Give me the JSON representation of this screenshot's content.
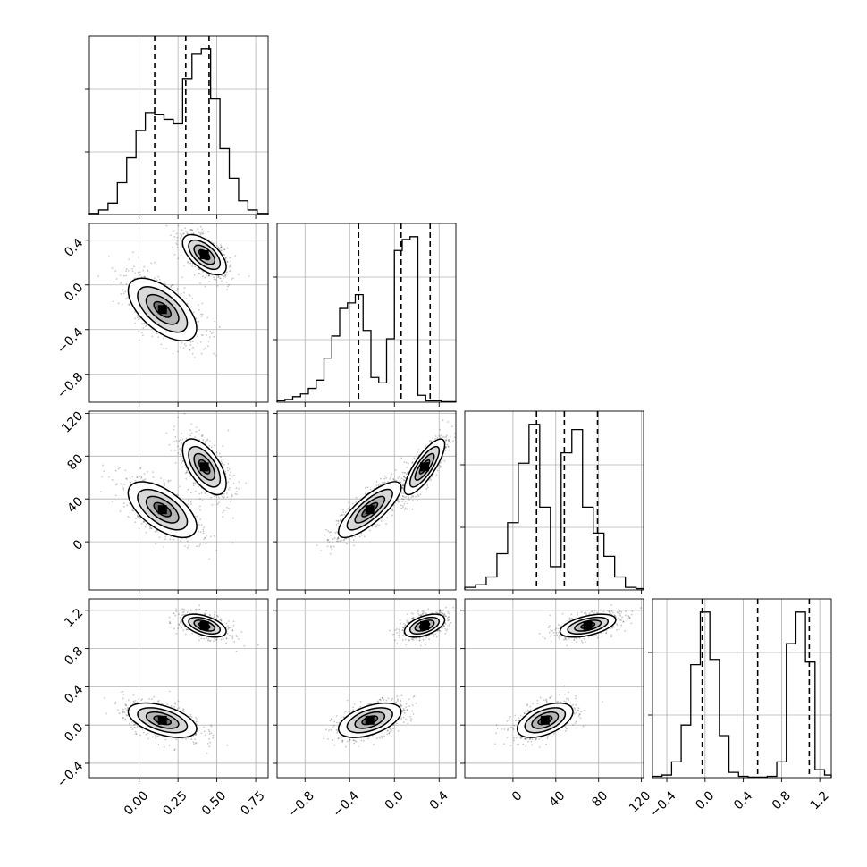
{
  "chart_data": {
    "type": "corner",
    "grid_visible": true,
    "dimensions": [
      {
        "name": "",
        "range": [
          -0.32,
          0.83
        ],
        "ticks": [
          0.0,
          0.25,
          0.5,
          0.75
        ],
        "tick_labels": [
          "0.00",
          "0.25",
          "0.50",
          "0.75"
        ],
        "quantiles": [
          0.1,
          0.3,
          0.45
        ],
        "hist_edges": [
          -0.32,
          -0.26,
          -0.2,
          -0.14,
          -0.08,
          -0.02,
          0.04,
          0.1,
          0.16,
          0.22,
          0.28,
          0.34,
          0.4,
          0.46,
          0.52,
          0.58,
          0.64,
          0.7,
          0.76,
          0.83
        ],
        "hist_counts": [
          0.5,
          2,
          5,
          14,
          25,
          37,
          45,
          44,
          42,
          40,
          60,
          71,
          73,
          51,
          29,
          16,
          6,
          2,
          0.5
        ]
      },
      {
        "name": "",
        "range": [
          -1.05,
          0.55
        ],
        "ticks": [
          -0.8,
          -0.4,
          0.0,
          0.4
        ],
        "tick_labels": [
          "−0.8",
          "−0.4",
          "0.0",
          "0.4"
        ],
        "quantiles": [
          -0.32,
          0.06,
          0.32
        ],
        "hist_edges": [
          -1.05,
          -0.98,
          -0.91,
          -0.84,
          -0.77,
          -0.7,
          -0.63,
          -0.56,
          -0.49,
          -0.42,
          -0.35,
          -0.28,
          -0.21,
          -0.14,
          -0.07,
          0.0,
          0.07,
          0.14,
          0.21,
          0.28,
          0.35,
          0.42,
          0.49,
          0.55
        ],
        "hist_counts": [
          0.5,
          1,
          2,
          3,
          5,
          8,
          16,
          24,
          34,
          36,
          39,
          26,
          9,
          7,
          23,
          55,
          59,
          60,
          2.5,
          0.5,
          0.5,
          0.2,
          0.2
        ]
      },
      {
        "name": "",
        "range": [
          -45,
          122
        ],
        "ticks": [
          0,
          40,
          80,
          120
        ],
        "tick_labels": [
          "0",
          "40",
          "80",
          "120"
        ],
        "quantiles": [
          22,
          48,
          79
        ],
        "hist_edges": [
          -45,
          -35,
          -25,
          -15,
          -5,
          5,
          15,
          25,
          35,
          45,
          55,
          65,
          75,
          85,
          95,
          105,
          115,
          122
        ],
        "hist_counts": [
          1,
          2,
          5,
          14,
          26,
          49,
          64,
          32,
          9,
          53,
          62,
          32,
          22,
          13,
          5,
          1,
          0.5
        ]
      },
      {
        "name": "",
        "range": [
          -0.55,
          1.32
        ],
        "ticks": [
          -0.4,
          0.0,
          0.4,
          0.8,
          1.2
        ],
        "tick_labels": [
          "−0.4",
          "0.0",
          "0.4",
          "0.8",
          "1.2"
        ],
        "quantiles": [
          -0.03,
          0.55,
          1.09
        ],
        "hist_edges": [
          -0.55,
          -0.45,
          -0.35,
          -0.25,
          -0.15,
          -0.05,
          0.05,
          0.15,
          0.25,
          0.35,
          0.45,
          0.55,
          0.65,
          0.75,
          0.85,
          0.95,
          1.05,
          1.15,
          1.25,
          1.32
        ],
        "hist_counts": [
          0.5,
          1,
          6,
          20,
          43,
          63,
          45,
          16,
          2,
          0.5,
          0.2,
          0.2,
          0.5,
          6,
          51,
          63,
          44,
          3,
          1
        ]
      }
    ],
    "modes": [
      {
        "weight": 0.5,
        "mean": [
          0.15,
          -0.22,
          30,
          0.05
        ],
        "sd": [
          0.11,
          0.14,
          13,
          0.09
        ]
      },
      {
        "weight": 0.5,
        "mean": [
          0.42,
          0.27,
          70,
          1.04
        ],
        "sd": [
          0.07,
          0.09,
          13,
          0.06
        ]
      }
    ],
    "pair_correlations": {
      "0-1": -0.6,
      "0-2": -0.6,
      "0-3": -0.5,
      "1-2": 0.8,
      "1-3": 0.5,
      "2-3": 0.5
    }
  }
}
